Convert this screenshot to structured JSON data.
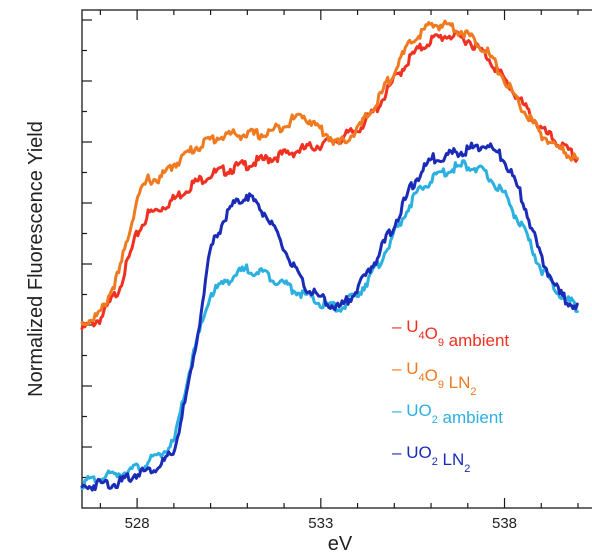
{
  "chart_data": {
    "type": "line",
    "xlabel": "eV",
    "ylabel": "Normalized Fluorescence Yield",
    "xlim": [
      526.5,
      540
    ],
    "ylim": [
      0,
      1
    ],
    "xticks": [
      528,
      533,
      538
    ],
    "xtick_labels": [
      "528",
      "533",
      "538"
    ],
    "grid": false,
    "legend_position": "lower-right inside",
    "series": [
      {
        "name": "U4O9 ambient",
        "legend": {
          "dash": "– ",
          "parts": [
            [
              "U",
              ""
            ],
            [
              "4",
              "sub"
            ],
            [
              "O",
              ""
            ],
            [
              "9",
              "sub"
            ],
            [
              " ambient",
              ""
            ]
          ]
        },
        "color": "#f03020",
        "x": [
          526.5,
          527.0,
          527.5,
          528.0,
          528.3,
          528.6,
          529.0,
          529.5,
          530.0,
          530.5,
          531.0,
          531.5,
          532.0,
          532.5,
          533.0,
          533.5,
          534.0,
          534.5,
          535.0,
          535.5,
          536.0,
          536.5,
          537.0,
          537.5,
          538.0,
          538.5,
          539.0,
          539.5,
          540.0
        ],
        "y": [
          0.36,
          0.38,
          0.44,
          0.55,
          0.59,
          0.6,
          0.62,
          0.65,
          0.67,
          0.68,
          0.69,
          0.7,
          0.71,
          0.72,
          0.73,
          0.74,
          0.76,
          0.8,
          0.86,
          0.91,
          0.94,
          0.95,
          0.94,
          0.91,
          0.86,
          0.81,
          0.76,
          0.73,
          0.7
        ]
      },
      {
        "name": "U4O9 LN2",
        "legend": {
          "dash": "– ",
          "parts": [
            [
              "U",
              ""
            ],
            [
              "4",
              "sub"
            ],
            [
              "O",
              ""
            ],
            [
              "9",
              "sub"
            ],
            [
              " LN",
              ""
            ],
            [
              "2",
              "sub"
            ]
          ]
        },
        "color": "#f07a20",
        "x": [
          526.5,
          527.0,
          527.5,
          528.0,
          528.3,
          528.6,
          529.0,
          529.5,
          530.0,
          530.5,
          531.0,
          531.5,
          532.0,
          532.5,
          533.0,
          533.5,
          534.0,
          534.5,
          535.0,
          535.5,
          536.0,
          536.5,
          537.0,
          537.5,
          538.0,
          538.5,
          539.0,
          539.5,
          540.0
        ],
        "y": [
          0.37,
          0.39,
          0.47,
          0.62,
          0.66,
          0.66,
          0.69,
          0.72,
          0.74,
          0.75,
          0.75,
          0.75,
          0.77,
          0.79,
          0.76,
          0.73,
          0.76,
          0.81,
          0.88,
          0.94,
          0.97,
          0.97,
          0.95,
          0.92,
          0.86,
          0.8,
          0.75,
          0.72,
          0.7
        ]
      },
      {
        "name": "UO2 ambient",
        "legend": {
          "dash": "– ",
          "parts": [
            [
              "UO",
              ""
            ],
            [
              "2",
              "sub"
            ],
            [
              " ambient",
              ""
            ]
          ]
        },
        "color": "#2cb0e0",
        "x": [
          526.5,
          527.0,
          527.5,
          528.0,
          528.5,
          529.0,
          529.5,
          530.0,
          530.5,
          531.0,
          531.5,
          532.0,
          532.5,
          533.0,
          533.5,
          534.0,
          534.5,
          535.0,
          535.5,
          536.0,
          536.5,
          537.0,
          537.5,
          538.0,
          538.5,
          539.0,
          539.5,
          540.0
        ],
        "y": [
          0.05,
          0.06,
          0.07,
          0.08,
          0.1,
          0.13,
          0.3,
          0.43,
          0.46,
          0.48,
          0.47,
          0.45,
          0.43,
          0.41,
          0.4,
          0.43,
          0.48,
          0.55,
          0.62,
          0.66,
          0.68,
          0.69,
          0.67,
          0.63,
          0.56,
          0.48,
          0.43,
          0.4
        ]
      },
      {
        "name": "UO2 LN2",
        "legend": {
          "dash": "– ",
          "parts": [
            [
              "UO",
              ""
            ],
            [
              "2",
              "sub"
            ],
            [
              " LN",
              ""
            ],
            [
              "2",
              "sub"
            ]
          ]
        },
        "color": "#1a2bb8",
        "x": [
          526.5,
          527.0,
          527.5,
          528.0,
          528.5,
          529.0,
          529.5,
          530.0,
          530.5,
          531.0,
          531.5,
          532.0,
          532.5,
          533.0,
          533.5,
          534.0,
          534.5,
          535.0,
          535.5,
          536.0,
          536.5,
          537.0,
          537.5,
          538.0,
          538.5,
          539.0,
          539.5,
          540.0
        ],
        "y": [
          0.04,
          0.05,
          0.05,
          0.07,
          0.08,
          0.11,
          0.28,
          0.52,
          0.6,
          0.63,
          0.59,
          0.52,
          0.45,
          0.42,
          0.4,
          0.44,
          0.5,
          0.57,
          0.65,
          0.7,
          0.71,
          0.72,
          0.73,
          0.7,
          0.62,
          0.5,
          0.43,
          0.4
        ]
      }
    ]
  }
}
